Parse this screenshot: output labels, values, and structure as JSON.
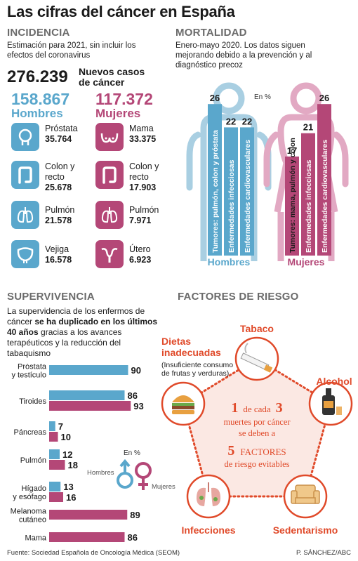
{
  "title": "Las cifras del cáncer en España",
  "incidencia": {
    "heading": "INCIDENCIA",
    "desc": "Estimación para 2021, sin incluir los efectos del coronavirus",
    "total": "276.239",
    "total_label": "Nuevos casos de cáncer",
    "men_total": "158.867",
    "men_label": "Hombres",
    "women_total": "117.372",
    "women_label": "Mujeres",
    "men_items": [
      {
        "name": "Próstata",
        "value": "35.764",
        "icon": "prostate-icon"
      },
      {
        "name": "Colon y recto",
        "value": "25.678",
        "icon": "colon-icon"
      },
      {
        "name": "Pulmón",
        "value": "21.578",
        "icon": "lung-icon"
      },
      {
        "name": "Vejiga",
        "value": "16.578",
        "icon": "bladder-icon"
      }
    ],
    "women_items": [
      {
        "name": "Mama",
        "value": "33.375",
        "icon": "breast-icon"
      },
      {
        "name": "Colon y recto",
        "value": "17.903",
        "icon": "colon-icon"
      },
      {
        "name": "Pulmón",
        "value": "7.971",
        "icon": "lung-icon"
      },
      {
        "name": "Útero",
        "value": "6.923",
        "icon": "uterus-icon"
      }
    ]
  },
  "mortalidad": {
    "heading": "MORTALIDAD",
    "desc": "Enero-mayo 2020. Los datos siguen mejorando debido a la prevención y al diagnóstico precoz",
    "unit": "En %",
    "men_label": "Hombres",
    "women_label": "Mujeres"
  },
  "supervivencia": {
    "heading": "SUPERVIVENCIA",
    "desc_pre": "La supervidencia de los enfermos de cáncer ",
    "desc_bold": "se ha duplicado en los últimos 40 años",
    "desc_post": " gracias a los avances terapéuticos y la reducción del tabaquismo",
    "unit": "En %",
    "legend_men": "Hombres",
    "legend_women": "Mujeres"
  },
  "factores": {
    "heading": "FACTORES DE RIESGO",
    "items": [
      "Tabaco",
      "Alcohol",
      "Sedentarismo",
      "Infecciones",
      "Dietas inadecuadas"
    ],
    "dietas_note": "(Insuficiente consumo de frutas y verduras)",
    "center_1": "1",
    "center_de_cada": "de cada",
    "center_3": "3",
    "center_line2": "muertes por cáncer",
    "center_line3": "se deben a",
    "center_5": "5",
    "center_factores": "FACTORES",
    "center_line5": "de riesgo evitables"
  },
  "footer": {
    "source": "Fuente: Sociedad Española de Oncología Médica (SEOM)",
    "credit": "P. SÁNCHEZ/ABC"
  },
  "colors": {
    "men": "#5aa7cc",
    "women": "#b44777",
    "silhouette_men": "#a9cfe2",
    "silhouette_women": "#e2a9c3",
    "accent": "#e04a2a"
  },
  "chart_data": [
    {
      "type": "bar",
      "name": "mortalidad",
      "unit": "En %",
      "series": [
        {
          "name": "Hombres",
          "categories": [
            "Tumores: pulmón, colon y próstata",
            "Enfermedades infecciosas",
            "Enfermedades cardiovasculares"
          ],
          "values": [
            26,
            22,
            22
          ]
        },
        {
          "name": "Mujeres",
          "categories": [
            "Tumores: mama, pulmón y colon",
            "Enfermedades infecciosas",
            "Enfermedades cardiovasculares"
          ],
          "values": [
            17,
            21,
            26
          ]
        }
      ]
    },
    {
      "type": "bar",
      "name": "supervivencia",
      "orientation": "horizontal",
      "unit": "En %",
      "categories": [
        "Próstata y testículo",
        "Tiroides",
        "Páncreas",
        "Pulmón",
        "Hígado y esófago",
        "Melanoma cutáneo",
        "Mama"
      ],
      "series": [
        {
          "name": "Hombres",
          "values": [
            90,
            86,
            7,
            12,
            13,
            null,
            null
          ]
        },
        {
          "name": "Mujeres",
          "values": [
            null,
            93,
            10,
            18,
            16,
            89,
            86
          ]
        }
      ],
      "xlim": [
        0,
        100
      ]
    }
  ]
}
